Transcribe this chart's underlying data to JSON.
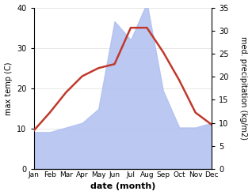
{
  "months": [
    "Jan",
    "Feb",
    "Mar",
    "Apr",
    "May",
    "Jun",
    "Jul",
    "Aug",
    "Sep",
    "Oct",
    "Nov",
    "Dec"
  ],
  "month_x": [
    1,
    2,
    3,
    4,
    5,
    6,
    7,
    8,
    9,
    10,
    11,
    12
  ],
  "temp": [
    9.5,
    14,
    19,
    23,
    25,
    26,
    35,
    35,
    29,
    22,
    14,
    11
  ],
  "precip": [
    8,
    8,
    9,
    10,
    13,
    32,
    28,
    36,
    17,
    9,
    9,
    10
  ],
  "temp_color": "#c0392b",
  "precip_color": "#b0bff0",
  "temp_ylim": [
    0,
    40
  ],
  "precip_ylim": [
    0,
    35
  ],
  "temp_yticks": [
    0,
    10,
    20,
    30,
    40
  ],
  "precip_yticks": [
    0,
    5,
    10,
    15,
    20,
    25,
    30,
    35
  ],
  "ylabel_left": "max temp (C)",
  "ylabel_right": "med. precipitation (kg/m2)",
  "xlabel": "date (month)",
  "background_color": "#ffffff",
  "line_width": 1.8,
  "grid_color": "#dddddd"
}
